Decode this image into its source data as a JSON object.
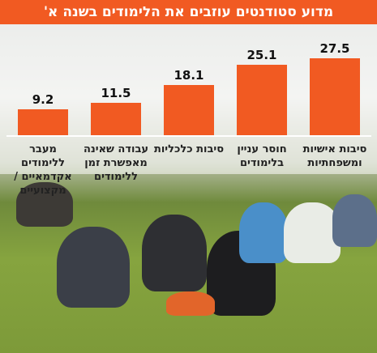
{
  "chart_data": {
    "type": "bar",
    "title": "מדוע סטודנטים עוזבים את הלימודים בשנה א'",
    "categories": [
      "סיבות אישיות ומשפחתיות",
      "חוסר עניין בלימודים",
      "סיבות כלכליות",
      "עבודה שאינה מאפשרת זמן ללימודים",
      "מעבר ללימודים אקדמאיים / מקצועיים"
    ],
    "values": [
      27.5,
      25.1,
      18.1,
      11.5,
      9.2
    ],
    "color": "#f15a22"
  }
}
